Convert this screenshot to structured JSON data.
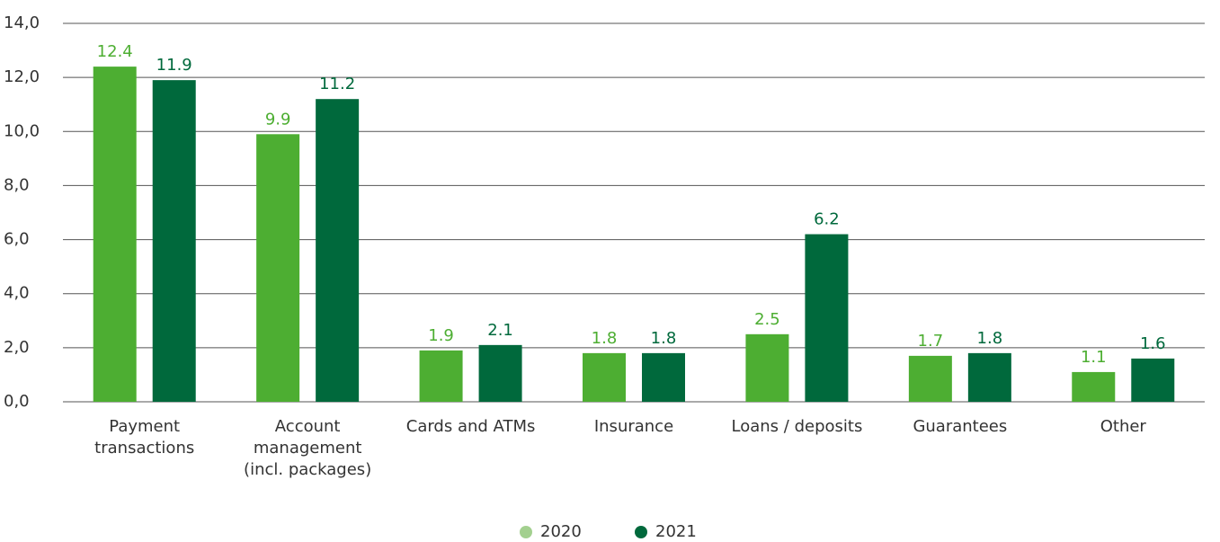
{
  "chart_data": {
    "type": "bar",
    "categories": [
      "Payment\ntransactions",
      "Account\nmanagement\n(incl. packages)",
      "Cards and ATMs",
      "Insurance",
      "Loans / deposits",
      "Guarantees",
      "Other"
    ],
    "series": [
      {
        "name": "2020",
        "color": "#4dae32",
        "values": [
          12.4,
          9.9,
          1.9,
          1.8,
          2.5,
          1.7,
          1.1
        ]
      },
      {
        "name": "2021",
        "color": "#00693c",
        "values": [
          11.9,
          11.2,
          2.1,
          1.8,
          6.2,
          1.8,
          1.6
        ]
      }
    ],
    "ylim": [
      0,
      14
    ],
    "yticks": [
      {
        "value": 0,
        "label": "0,0"
      },
      {
        "value": 2,
        "label": "2,0"
      },
      {
        "value": 4,
        "label": "4,0"
      },
      {
        "value": 6,
        "label": "6,0"
      },
      {
        "value": 8,
        "label": "8,0"
      },
      {
        "value": 10,
        "label": "10,0"
      },
      {
        "value": 12,
        "label": "12,0"
      },
      {
        "value": 14,
        "label": "14,0"
      }
    ],
    "grid": true,
    "legend": "bottom"
  }
}
